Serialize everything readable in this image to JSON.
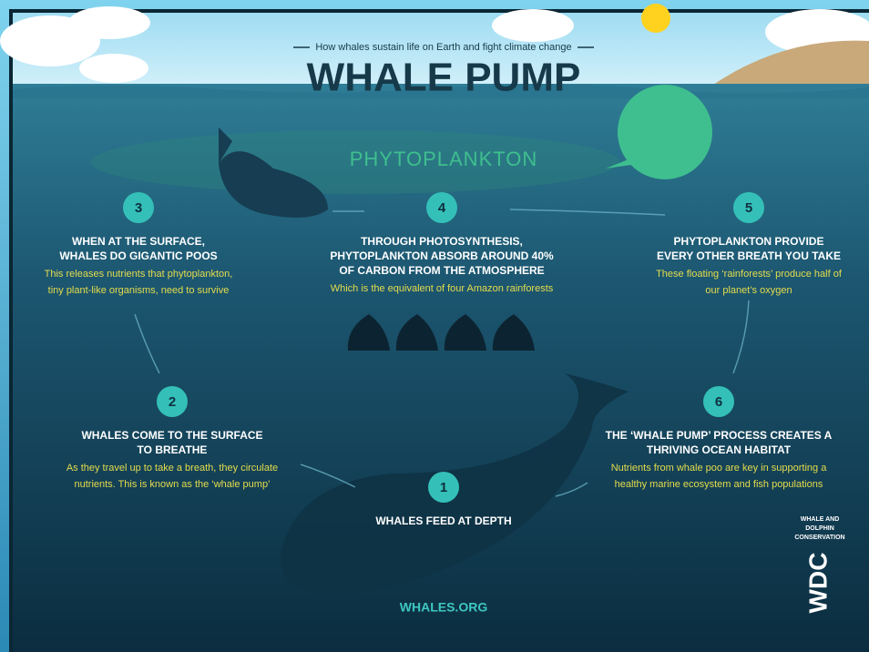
{
  "header": {
    "subtitle": "How whales sustain life on Earth and fight climate change",
    "title": "WHALE PUMP"
  },
  "band_label": "PHYTOPLANKTON",
  "steps": [
    {
      "number": "1",
      "heading": [
        "WHALES FEED AT DEPTH"
      ]
    },
    {
      "number": "2",
      "heading": [
        "WHALES COME TO THE SURFACE",
        "TO BREATHE"
      ],
      "body": [
        "As they travel up to take a breath, they circulate",
        "nutrients. This is known as the ‘whale pump’"
      ]
    },
    {
      "number": "3",
      "heading": [
        "WHEN AT THE SURFACE,",
        "WHALES DO GIGANTIC POOS"
      ],
      "body": [
        "This releases nutrients that phytoplankton,",
        "tiny plant-like organisms, need to survive"
      ]
    },
    {
      "number": "4",
      "heading": [
        "THROUGH PHOTOSYNTHESIS,",
        "PHYTOPLANKTON ABSORB AROUND 40%",
        "OF CARBON FROM THE ATMOSPHERE"
      ],
      "body": [
        "Which is the equivalent of four Amazon rainforests"
      ]
    },
    {
      "number": "5",
      "heading": [
        "PHYTOPLANKTON PROVIDE",
        "EVERY OTHER BREATH YOU TAKE"
      ],
      "body": [
        "These floating ‘rainforests’ produce half of",
        "our planet’s oxygen"
      ]
    },
    {
      "number": "6",
      "heading": [
        "THE ‘WHALE PUMP’ PROCESS CREATES A",
        "THRIVING OCEAN HABITAT"
      ],
      "body": [
        "Nutrients from whale poo are key in supporting a",
        "healthy marine ecosystem and fish populations"
      ]
    }
  ],
  "footer": "WHALES.ORG",
  "logo": {
    "lines": [
      "WHALE AND",
      "DOLPHIN",
      "CONSERVATION"
    ],
    "mark": "WDC"
  }
}
